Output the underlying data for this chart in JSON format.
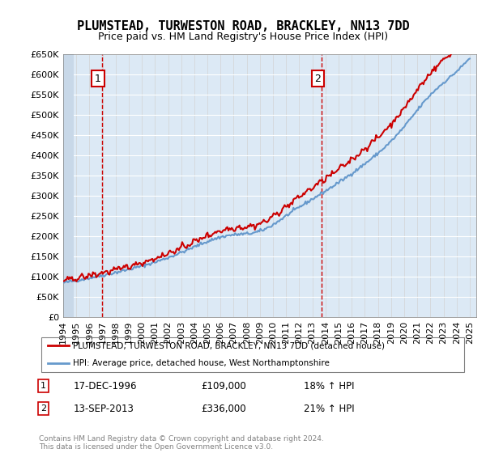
{
  "title": "PLUMSTEAD, TURWESTON ROAD, BRACKLEY, NN13 7DD",
  "subtitle": "Price paid vs. HM Land Registry's House Price Index (HPI)",
  "legend_line1": "PLUMSTEAD, TURWESTON ROAD, BRACKLEY, NN13 7DD (detached house)",
  "legend_line2": "HPI: Average price, detached house, West Northamptonshire",
  "annotation1_label": "1",
  "annotation1_date": "17-DEC-1996",
  "annotation1_price": "£109,000",
  "annotation1_hpi": "18% ↑ HPI",
  "annotation2_label": "2",
  "annotation2_date": "13-SEP-2013",
  "annotation2_price": "£336,000",
  "annotation2_hpi": "21% ↑ HPI",
  "footnote": "Contains HM Land Registry data © Crown copyright and database right 2024.\nThis data is licensed under the Open Government Licence v3.0.",
  "sale1_year": 1996.96,
  "sale1_price": 109000,
  "sale2_year": 2013.71,
  "sale2_price": 336000,
  "red_color": "#cc0000",
  "blue_color": "#6699cc",
  "background_plot": "#dce9f5",
  "background_hatch": "#c8d8e8",
  "ylim": [
    0,
    650000
  ],
  "xlim_start": 1994,
  "xlim_end": 2025.5
}
